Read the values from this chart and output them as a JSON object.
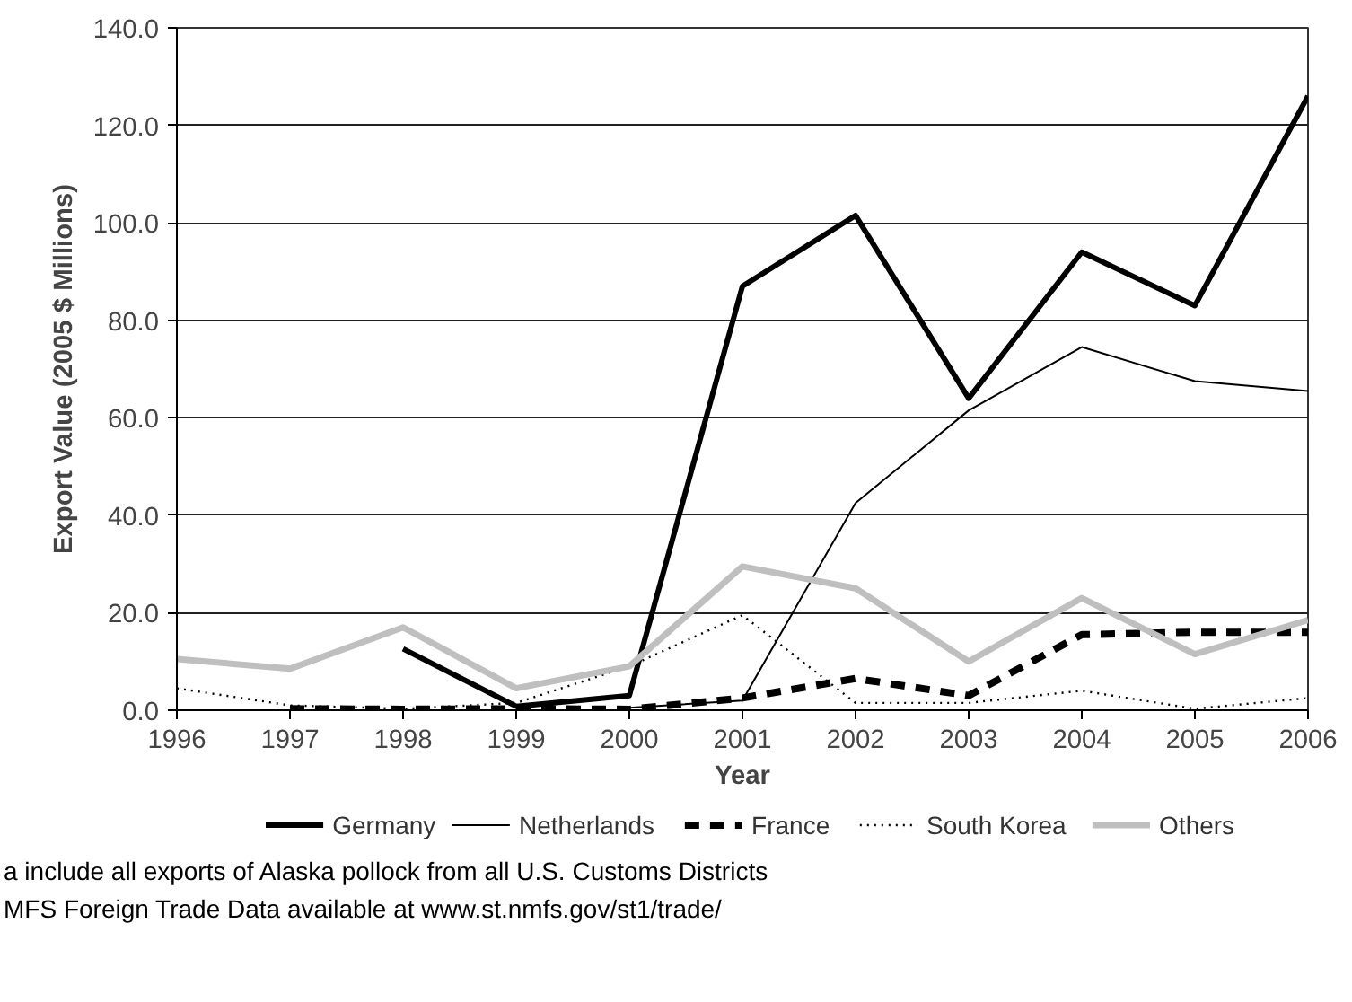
{
  "chart_data": {
    "type": "line",
    "xlabel": "Year",
    "ylabel": "Export Value (2005 $ Millions)",
    "x": [
      1996,
      1997,
      1998,
      1999,
      2000,
      2001,
      2002,
      2003,
      2004,
      2005,
      2006
    ],
    "series": [
      {
        "name": "Germany",
        "color": "#000000",
        "line_style": "solid",
        "values": [
          null,
          null,
          12.6,
          0.8,
          3.0,
          87.0,
          101.5,
          64.0,
          94.0,
          83.0,
          126.0
        ]
      },
      {
        "name": "Netherlands",
        "color": "#000000",
        "line_style": "solid",
        "values": [
          null,
          null,
          null,
          null,
          0.5,
          2.0,
          42.5,
          61.5,
          74.5,
          67.5,
          65.5
        ]
      },
      {
        "name": "France",
        "color": "#000000",
        "line_style": "dashed",
        "values": [
          null,
          0.3,
          0.2,
          0.3,
          0.2,
          2.5,
          6.5,
          3.0,
          15.5,
          16.0,
          16.0
        ]
      },
      {
        "name": "South Korea",
        "color": "#000000",
        "line_style": "dotted",
        "values": [
          4.5,
          1.0,
          0.3,
          1.5,
          9.0,
          19.5,
          1.5,
          1.5,
          4.0,
          0.3,
          2.5
        ]
      },
      {
        "name": "Others",
        "color": "#bfbfbf",
        "line_style": "solid",
        "values": [
          10.5,
          8.5,
          17.0,
          4.5,
          9.0,
          29.5,
          25.0,
          10.0,
          23.0,
          11.5,
          18.5
        ]
      }
    ],
    "xlim": [
      1996,
      2006
    ],
    "xticks": [
      1996,
      1997,
      1998,
      1999,
      2000,
      2001,
      2002,
      2003,
      2004,
      2005,
      2006
    ],
    "ylim": [
      0,
      140
    ],
    "yticks": [
      {
        "value": 0,
        "label": "0.0"
      },
      {
        "value": 20,
        "label": "20.0"
      },
      {
        "value": 40,
        "label": "40.0"
      },
      {
        "value": 60,
        "label": "60.0"
      },
      {
        "value": 80,
        "label": "80.0"
      },
      {
        "value": 100,
        "label": "100.0"
      },
      {
        "value": 120,
        "label": "120.0"
      },
      {
        "value": 140,
        "label": "140.0"
      }
    ],
    "grid": "y",
    "legend": "bottom",
    "marker": "none",
    "annotations": [
      "a include all exports of Alaska pollock from all U.S. Customs Districts",
      "MFS Foreign Trade Data available at www.st.nmfs.gov/st1/trade/"
    ]
  }
}
